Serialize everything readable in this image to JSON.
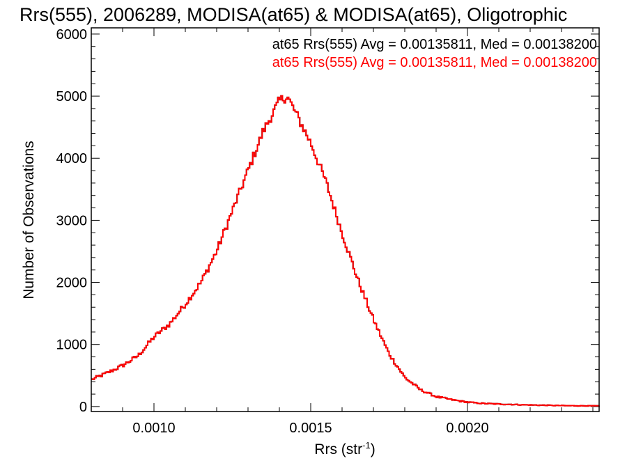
{
  "chart_data": {
    "type": "histogram",
    "title": "Rrs(555), 2006289, MODISA(at65) & MODISA(at65), Oligotrophic",
    "xlabel": {
      "base": "Rrs (str",
      "sup": "-1",
      "close": ")"
    },
    "ylabel": "Number of Observations",
    "xlim": [
      0.0008,
      0.00242
    ],
    "ylim": [
      -80,
      6100
    ],
    "x_ticks": [
      0.001,
      0.0015,
      0.002
    ],
    "x_tick_labels": [
      "0.0010",
      "0.0015",
      "0.0020"
    ],
    "y_ticks": [
      0,
      1000,
      2000,
      3000,
      4000,
      5000,
      6000
    ],
    "y_tick_labels": [
      "0",
      "1000",
      "2000",
      "3000",
      "4000",
      "5000",
      "6000"
    ],
    "grid": false,
    "legend_position": "top-right",
    "series": [
      {
        "name": "at65 Rrs(555) Avg = 0.00135811, Med = 0.00138200",
        "color": "#000000",
        "x": [
          0.0008,
          0.00085,
          0.0009,
          0.00095,
          0.001,
          0.00105,
          0.0011,
          0.00115,
          0.0012,
          0.00125,
          0.0013,
          0.00135,
          0.0014,
          0.001425,
          0.00145,
          0.0015,
          0.00155,
          0.0016,
          0.00165,
          0.0017,
          0.00175,
          0.0018,
          0.00185,
          0.0019,
          0.00195,
          0.002,
          0.00205,
          0.0021,
          0.0022,
          0.0023,
          0.00242
        ],
        "y": [
          430,
          540,
          660,
          820,
          1120,
          1330,
          1650,
          2000,
          2500,
          3150,
          3800,
          4450,
          4920,
          5000,
          4750,
          4250,
          3600,
          2800,
          2050,
          1400,
          850,
          470,
          270,
          160,
          110,
          70,
          50,
          40,
          25,
          15,
          10
        ]
      },
      {
        "name": "at65 Rrs(555) Avg = 0.00135811, Med = 0.00138200",
        "color": "#ff0000",
        "x": [
          0.0008,
          0.00085,
          0.0009,
          0.00095,
          0.001,
          0.00105,
          0.0011,
          0.00115,
          0.0012,
          0.00125,
          0.0013,
          0.00135,
          0.0014,
          0.001425,
          0.00145,
          0.0015,
          0.00155,
          0.0016,
          0.00165,
          0.0017,
          0.00175,
          0.0018,
          0.00185,
          0.0019,
          0.00195,
          0.002,
          0.00205,
          0.0021,
          0.0022,
          0.0023,
          0.00242
        ],
        "y": [
          430,
          540,
          660,
          820,
          1120,
          1330,
          1650,
          2000,
          2500,
          3150,
          3800,
          4450,
          4920,
          5000,
          4750,
          4250,
          3600,
          2800,
          2050,
          1400,
          850,
          470,
          270,
          160,
          110,
          70,
          50,
          40,
          25,
          15,
          10
        ]
      }
    ]
  }
}
